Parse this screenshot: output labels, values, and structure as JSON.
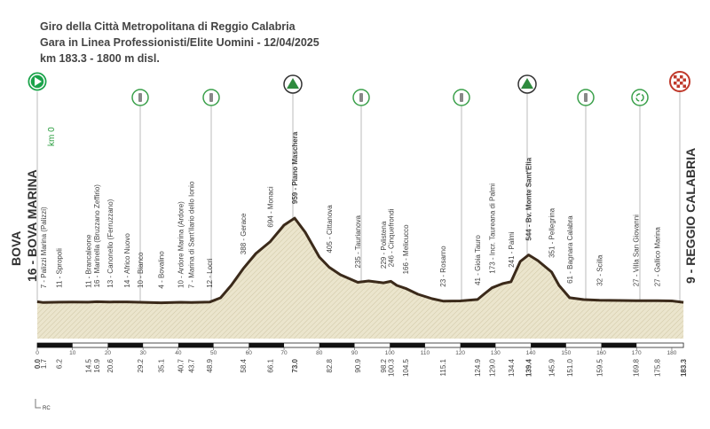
{
  "chart_data": {
    "type": "area",
    "title_lines": [
      "Giro della Città Metropolitana di Reggio Calabria",
      "Gara in Linea Professionisti/Elite Uomini - 12/04/2025",
      "km 183.3 - 1800 m disl."
    ],
    "x": [
      0,
      1.7,
      6.2,
      10,
      14.5,
      16.9,
      20.6,
      25.4,
      29.2,
      35.1,
      40.7,
      43.7,
      48.9,
      52,
      55,
      58.4,
      62,
      66.1,
      70,
      73,
      76,
      80,
      82.8,
      86,
      90.9,
      94,
      98.2,
      100.3,
      102,
      104.5,
      108,
      112,
      115.1,
      120,
      124.9,
      127,
      129,
      132,
      134.4,
      137,
      139.4,
      142,
      145.9,
      148,
      151,
      155,
      159.5,
      165,
      169.8,
      175.8,
      180,
      183.3
    ],
    "values": [
      16,
      7,
      11,
      12,
      11,
      16,
      13,
      14,
      10,
      4,
      10,
      7,
      12,
      60,
      200,
      388,
      560,
      694,
      880,
      959,
      800,
      520,
      405,
      320,
      235,
      250,
      229,
      246,
      200,
      166,
      100,
      50,
      23,
      25,
      41,
      110,
      173,
      220,
      241,
      470,
      544,
      480,
      351,
      200,
      61,
      40,
      32,
      30,
      27,
      27,
      25,
      9
    ],
    "color": "#3b2a1a",
    "fill": "#e9e3cb",
    "xlim": [
      0,
      183.3
    ],
    "ylim": [
      -400,
      1200
    ],
    "xticks": [
      0,
      10,
      20,
      30,
      40,
      50,
      60,
      70,
      80,
      90,
      100,
      110,
      120,
      130,
      140,
      150,
      160,
      170,
      180
    ],
    "start": {
      "km": {
        "value": 0,
        "label": "0.0"
      },
      "town": "BOVA",
      "label": "16 - BOVA MARINA",
      "note": "km 0"
    },
    "finish": {
      "km": 183.3,
      "label": "9 - REGGIO CALABRIA"
    },
    "waypoints": [
      {
        "km": 1.7,
        "label": "7 - Palizzi Marina (Palizzi)"
      },
      {
        "km": 6.2,
        "label": "11 - Spropoli"
      },
      {
        "km": 14.5,
        "label": "11 - Brancaleone"
      },
      {
        "km": 16.9,
        "label": "16 - Marinella (Bruzzano Zeffirio)"
      },
      {
        "km": 20.6,
        "label": "13 - Canonello (Ferruzzano)"
      },
      {
        "km": {
          "value": 25.4,
          "label": null
        },
        "label": "14 - Africo Nuovo"
      },
      {
        "km": 29.2,
        "label": "10 - Bianco"
      },
      {
        "km": 35.1,
        "label": "4 - Bovalino"
      },
      {
        "km": 40.7,
        "label": "10 - Ardore Marina (Ardore)"
      },
      {
        "km": 43.7,
        "label": "7 - Marina di Sant'Ilario dello Ionio"
      },
      {
        "km": 48.9,
        "label": "12 - Locri"
      },
      {
        "km": 58.4,
        "label": "388 - Gerace"
      },
      {
        "km": 66.1,
        "label": "694 - Monaci"
      },
      {
        "km": {
          "value": 73,
          "label": "73.0"
        },
        "label": "959 - Piano Maschera",
        "bold": true
      },
      {
        "km": 82.8,
        "label": "405 - Cittanova"
      },
      {
        "km": 90.9,
        "label": "235 - Taurianova"
      },
      {
        "km": 98.2,
        "label": "229 - Polistena"
      },
      {
        "km": 100.3,
        "label": "246 - Cinquefrondi"
      },
      {
        "km": 104.5,
        "label": "166 - Melicucco"
      },
      {
        "km": 115.1,
        "label": "23 - Rosarno"
      },
      {
        "km": 124.9,
        "label": "41 - Gioia Tauro"
      },
      {
        "km": {
          "value": 129,
          "label": "129.0"
        },
        "label": "173 - Incr. Taureana di Palmi"
      },
      {
        "km": 134.4,
        "label": "241 - Palmi"
      },
      {
        "km": 139.4,
        "label": "544 - Bv. Monte Sant'Elia",
        "bold": true
      },
      {
        "km": 145.9,
        "label": "351 - Pellegrina"
      },
      {
        "km": {
          "value": 151,
          "label": "151.0"
        },
        "label": "61 - Bagnara Calabra"
      },
      {
        "km": 159.5,
        "label": "32 - Scilla"
      },
      {
        "km": 169.8,
        "label": "27 - Villa San Giovanni"
      },
      {
        "km": 175.8,
        "label": "27 - Gallico Marina"
      }
    ],
    "logo": "RC"
  }
}
